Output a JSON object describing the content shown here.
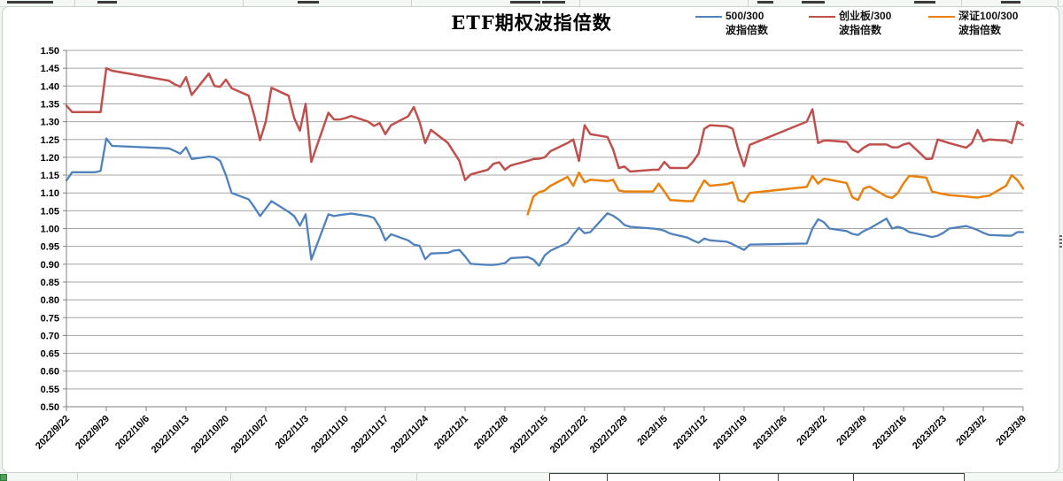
{
  "chart": {
    "title": "ETF期权波指倍数"
  },
  "chart_data": {
    "type": "line",
    "title": "ETF期权波指倍数",
    "ylim": [
      0.5,
      1.5
    ],
    "y_tick_step": 0.05,
    "grid": "horizontal",
    "legend_position": "top-right",
    "x_start": "2022/9/22",
    "x_end": "2023/3/9",
    "y_tick_labels": [
      "1.50",
      "1.45",
      "1.40",
      "1.35",
      "1.30",
      "1.25",
      "1.20",
      "1.15",
      "1.10",
      "1.05",
      "1.00",
      "0.95",
      "0.90",
      "0.85",
      "0.80",
      "0.75",
      "0.70",
      "0.65",
      "0.60",
      "0.55",
      "0.50"
    ],
    "x_tick_labels": [
      "2022/9/22",
      "2022/9/29",
      "2022/10/6",
      "2022/10/13",
      "2022/10/20",
      "2022/10/27",
      "2022/11/3",
      "2022/11/10",
      "2022/11/17",
      "2022/11/24",
      "2022/12/1",
      "2022/12/8",
      "2022/12/15",
      "2022/12/22",
      "2022/12/29",
      "2023/1/5",
      "2023/1/12",
      "2023/1/19",
      "2023/1/26",
      "2023/2/2",
      "2023/2/9",
      "2023/2/16",
      "2023/2/23",
      "2023/3/2",
      "2023/3/9"
    ],
    "series": [
      {
        "id": "500-300",
        "legend_line1": "500/300",
        "legend_line2": "波指倍数",
        "color": "#4F81BD",
        "width": 2.3,
        "dates": [
          "2022/9/22",
          "2022/9/23",
          "2022/9/26",
          "2022/9/27",
          "2022/9/28",
          "2022/9/29",
          "2022/9/30",
          "2022/10/10",
          "2022/10/11",
          "2022/10/12",
          "2022/10/13",
          "2022/10/14",
          "2022/10/17",
          "2022/10/18",
          "2022/10/19",
          "2022/10/20",
          "2022/10/21",
          "2022/10/24",
          "2022/10/25",
          "2022/10/26",
          "2022/10/27",
          "2022/10/28",
          "2022/10/31",
          "2022/11/1",
          "2022/11/2",
          "2022/11/3",
          "2022/11/4",
          "2022/11/7",
          "2022/11/8",
          "2022/11/9",
          "2022/11/10",
          "2022/11/11",
          "2022/11/14",
          "2022/11/15",
          "2022/11/16",
          "2022/11/17",
          "2022/11/18",
          "2022/11/21",
          "2022/11/22",
          "2022/11/23",
          "2022/11/24",
          "2022/11/25",
          "2022/11/28",
          "2022/11/29",
          "2022/11/30",
          "2022/12/1",
          "2022/12/2",
          "2022/12/5",
          "2022/12/6",
          "2022/12/7",
          "2022/12/8",
          "2022/12/9",
          "2022/12/12",
          "2022/12/13",
          "2022/12/14",
          "2022/12/15",
          "2022/12/16",
          "2022/12/19",
          "2022/12/20",
          "2022/12/21",
          "2022/12/22",
          "2022/12/23",
          "2022/12/26",
          "2022/12/27",
          "2022/12/28",
          "2022/12/29",
          "2022/12/30",
          "2023/1/3",
          "2023/1/4",
          "2023/1/5",
          "2023/1/6",
          "2023/1/9",
          "2023/1/10",
          "2023/1/11",
          "2023/1/12",
          "2023/1/13",
          "2023/1/16",
          "2023/1/17",
          "2023/1/18",
          "2023/1/19",
          "2023/1/20",
          "2023/1/30",
          "2023/1/31",
          "2023/2/1",
          "2023/2/2",
          "2023/2/3",
          "2023/2/6",
          "2023/2/7",
          "2023/2/8",
          "2023/2/9",
          "2023/2/10",
          "2023/2/13",
          "2023/2/14",
          "2023/2/15",
          "2023/2/16",
          "2023/2/17",
          "2023/2/20",
          "2023/2/21",
          "2023/2/22",
          "2023/2/23",
          "2023/2/24",
          "2023/2/27",
          "2023/2/28",
          "2023/3/1",
          "2023/3/2",
          "2023/3/3",
          "2023/3/6",
          "2023/3/7",
          "2023/3/8",
          "2023/3/9"
        ],
        "values": [
          1.135,
          1.158,
          1.158,
          1.158,
          1.162,
          1.253,
          1.232,
          1.225,
          1.218,
          1.21,
          1.228,
          1.195,
          1.202,
          1.2,
          1.19,
          1.15,
          1.1,
          1.082,
          1.06,
          1.035,
          1.056,
          1.077,
          1.047,
          1.035,
          1.008,
          1.04,
          0.913,
          1.04,
          1.035,
          1.038,
          1.04,
          1.042,
          1.035,
          1.03,
          1.005,
          0.967,
          0.984,
          0.967,
          0.955,
          0.952,
          0.914,
          0.93,
          0.932,
          0.938,
          0.94,
          0.922,
          0.901,
          0.898,
          0.898,
          0.9,
          0.903,
          0.917,
          0.92,
          0.913,
          0.896,
          0.925,
          0.938,
          0.96,
          0.983,
          1.002,
          0.987,
          0.99,
          1.043,
          1.036,
          1.025,
          1.01,
          1.005,
          1.0,
          0.998,
          0.994,
          0.986,
          0.975,
          0.967,
          0.96,
          0.972,
          0.967,
          0.963,
          0.956,
          0.948,
          0.94,
          0.955,
          0.958,
          1.0,
          1.026,
          1.018,
          1.0,
          0.993,
          0.985,
          0.982,
          0.993,
          1.0,
          1.028,
          1.0,
          1.005,
          1.0,
          0.99,
          0.98,
          0.976,
          0.98,
          0.988,
          1.0,
          1.007,
          1.002,
          0.996,
          0.988,
          0.982,
          0.98,
          0.98,
          0.99,
          0.99
        ]
      },
      {
        "id": "chinext-300",
        "legend_line1": "创业板/300",
        "legend_line2": "波指倍数",
        "color": "#C0504D",
        "width": 2.5,
        "dates": [
          "2022/9/22",
          "2022/9/23",
          "2022/9/26",
          "2022/9/27",
          "2022/9/28",
          "2022/9/29",
          "2022/9/30",
          "2022/10/10",
          "2022/10/11",
          "2022/10/12",
          "2022/10/13",
          "2022/10/14",
          "2022/10/17",
          "2022/10/18",
          "2022/10/19",
          "2022/10/20",
          "2022/10/21",
          "2022/10/24",
          "2022/10/25",
          "2022/10/26",
          "2022/10/27",
          "2022/10/28",
          "2022/10/31",
          "2022/11/1",
          "2022/11/2",
          "2022/11/3",
          "2022/11/4",
          "2022/11/7",
          "2022/11/8",
          "2022/11/9",
          "2022/11/10",
          "2022/11/11",
          "2022/11/14",
          "2022/11/15",
          "2022/11/16",
          "2022/11/17",
          "2022/11/18",
          "2022/11/21",
          "2022/11/22",
          "2022/11/23",
          "2022/11/24",
          "2022/11/25",
          "2022/11/28",
          "2022/11/29",
          "2022/11/30",
          "2022/12/1",
          "2022/12/2",
          "2022/12/5",
          "2022/12/6",
          "2022/12/7",
          "2022/12/8",
          "2022/12/9",
          "2022/12/12",
          "2022/12/13",
          "2022/12/14",
          "2022/12/15",
          "2022/12/16",
          "2022/12/19",
          "2022/12/20",
          "2022/12/21",
          "2022/12/22",
          "2022/12/23",
          "2022/12/26",
          "2022/12/27",
          "2022/12/28",
          "2022/12/29",
          "2022/12/30",
          "2023/1/3",
          "2023/1/4",
          "2023/1/5",
          "2023/1/6",
          "2023/1/9",
          "2023/1/10",
          "2023/1/11",
          "2023/1/12",
          "2023/1/13",
          "2023/1/16",
          "2023/1/17",
          "2023/1/18",
          "2023/1/19",
          "2023/1/20",
          "2023/1/30",
          "2023/1/31",
          "2023/2/1",
          "2023/2/2",
          "2023/2/3",
          "2023/2/6",
          "2023/2/7",
          "2023/2/8",
          "2023/2/9",
          "2023/2/10",
          "2023/2/13",
          "2023/2/14",
          "2023/2/15",
          "2023/2/16",
          "2023/2/17",
          "2023/2/20",
          "2023/2/21",
          "2023/2/22",
          "2023/2/23",
          "2023/2/24",
          "2023/2/27",
          "2023/2/28",
          "2023/3/1",
          "2023/3/2",
          "2023/3/3",
          "2023/3/6",
          "2023/3/7",
          "2023/3/8",
          "2023/3/9"
        ],
        "values": [
          1.345,
          1.327,
          1.327,
          1.327,
          1.327,
          1.45,
          1.443,
          1.415,
          1.405,
          1.398,
          1.425,
          1.375,
          1.435,
          1.4,
          1.398,
          1.418,
          1.394,
          1.373,
          1.316,
          1.248,
          1.3,
          1.395,
          1.373,
          1.31,
          1.275,
          1.35,
          1.187,
          1.325,
          1.306,
          1.306,
          1.31,
          1.316,
          1.3,
          1.288,
          1.296,
          1.265,
          1.29,
          1.315,
          1.341,
          1.3,
          1.24,
          1.277,
          1.24,
          1.215,
          1.19,
          1.136,
          1.152,
          1.165,
          1.182,
          1.186,
          1.165,
          1.177,
          1.19,
          1.195,
          1.196,
          1.2,
          1.217,
          1.24,
          1.25,
          1.19,
          1.29,
          1.265,
          1.257,
          1.222,
          1.17,
          1.174,
          1.16,
          1.165,
          1.165,
          1.187,
          1.17,
          1.17,
          1.187,
          1.21,
          1.28,
          1.29,
          1.287,
          1.28,
          1.22,
          1.175,
          1.235,
          1.3,
          1.335,
          1.24,
          1.247,
          1.247,
          1.243,
          1.222,
          1.214,
          1.227,
          1.236,
          1.236,
          1.228,
          1.228,
          1.236,
          1.24,
          1.195,
          1.196,
          1.25,
          1.245,
          1.24,
          1.227,
          1.24,
          1.277,
          1.245,
          1.25,
          1.247,
          1.24,
          1.3,
          1.29
        ]
      },
      {
        "id": "sz100-300",
        "legend_line1": "深证100/300",
        "legend_line2": "波指倍数",
        "color": "#E8820C",
        "width": 2.5,
        "dates": [
          "2022/12/12",
          "2022/12/13",
          "2022/12/14",
          "2022/12/15",
          "2022/12/16",
          "2022/12/19",
          "2022/12/20",
          "2022/12/21",
          "2022/12/22",
          "2022/12/23",
          "2022/12/26",
          "2022/12/27",
          "2022/12/28",
          "2022/12/29",
          "2022/12/30",
          "2023/1/3",
          "2023/1/4",
          "2023/1/5",
          "2023/1/6",
          "2023/1/9",
          "2023/1/10",
          "2023/1/11",
          "2023/1/12",
          "2023/1/13",
          "2023/1/16",
          "2023/1/17",
          "2023/1/18",
          "2023/1/19",
          "2023/1/20",
          "2023/1/30",
          "2023/1/31",
          "2023/2/1",
          "2023/2/2",
          "2023/2/3",
          "2023/2/6",
          "2023/2/7",
          "2023/2/8",
          "2023/2/9",
          "2023/2/10",
          "2023/2/13",
          "2023/2/14",
          "2023/2/15",
          "2023/2/16",
          "2023/2/17",
          "2023/2/20",
          "2023/2/21",
          "2023/2/22",
          "2023/2/23",
          "2023/2/24",
          "2023/2/27",
          "2023/2/28",
          "2023/3/1",
          "2023/3/2",
          "2023/3/3",
          "2023/3/6",
          "2023/3/7",
          "2023/3/8",
          "2023/3/9"
        ],
        "values": [
          1.04,
          1.09,
          1.102,
          1.107,
          1.12,
          1.145,
          1.12,
          1.157,
          1.13,
          1.137,
          1.133,
          1.137,
          1.107,
          1.104,
          1.104,
          1.104,
          1.126,
          1.104,
          1.08,
          1.077,
          1.077,
          1.107,
          1.135,
          1.12,
          1.125,
          1.13,
          1.08,
          1.075,
          1.1,
          1.117,
          1.148,
          1.126,
          1.14,
          1.137,
          1.128,
          1.088,
          1.08,
          1.112,
          1.118,
          1.09,
          1.086,
          1.1,
          1.127,
          1.148,
          1.143,
          1.104,
          1.1,
          1.097,
          1.094,
          1.09,
          1.088,
          1.087,
          1.09,
          1.092,
          1.12,
          1.15,
          1.136,
          1.112
        ]
      }
    ]
  }
}
